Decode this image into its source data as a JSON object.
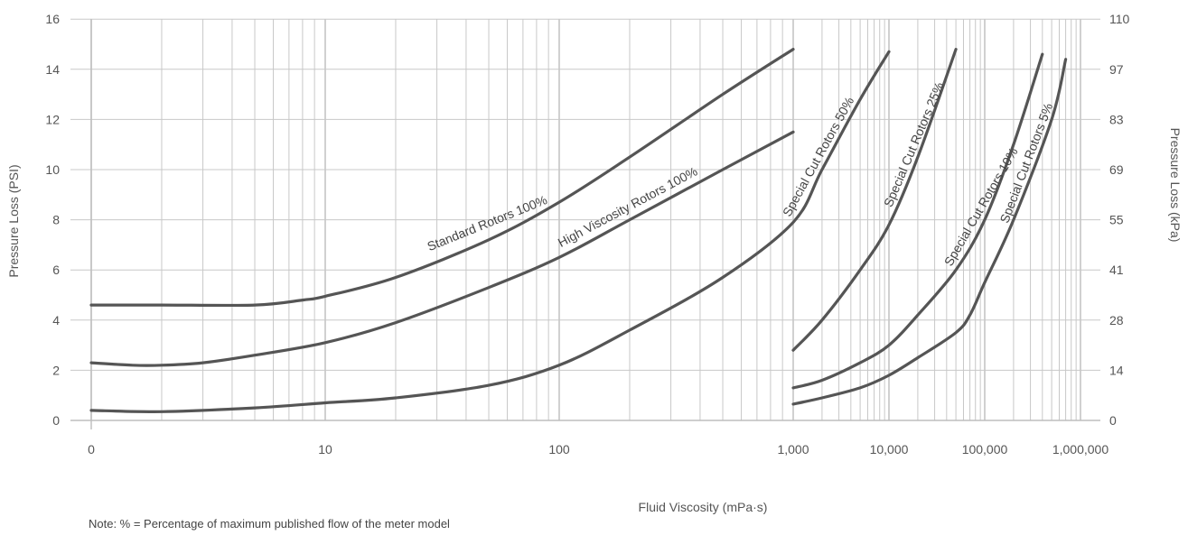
{
  "chart_data": {
    "type": "line",
    "xlabel": "Fluid Viscosity (mPa·s)",
    "ylabel_left": "Pressure Loss (PSI)",
    "ylabel_right": "Pressure Loss (kPa)",
    "note": "Note: % = Percentage of maximum published flow of the meter model",
    "x_scale": "log (two segments: 1–1,000 and 1,000–1,000,000)",
    "x_tick_labels": [
      "0",
      "10",
      "100",
      "1,000",
      "10,000",
      "100,000",
      "1,000,000"
    ],
    "y_left_ticks": [
      "0",
      "2",
      "4",
      "6",
      "8",
      "10",
      "12",
      "14",
      "16"
    ],
    "y_right_ticks": [
      "0",
      "14",
      "28",
      "41",
      "55",
      "69",
      "83",
      "97",
      "110"
    ],
    "ylim": [
      0,
      16
    ],
    "grid": true,
    "series": [
      {
        "name": "Standard Rotors 100%",
        "points": [
          [
            1,
            4.6
          ],
          [
            2,
            4.6
          ],
          [
            5,
            4.6
          ],
          [
            8,
            4.8
          ],
          [
            10,
            4.95
          ],
          [
            20,
            5.7
          ],
          [
            50,
            7.2
          ],
          [
            100,
            8.7
          ],
          [
            200,
            10.5
          ],
          [
            500,
            13.0
          ],
          [
            1000,
            14.8
          ]
        ]
      },
      {
        "name": "High Viscosity Rotors 100%",
        "points": [
          [
            1,
            2.3
          ],
          [
            1.5,
            2.2
          ],
          [
            2,
            2.2
          ],
          [
            3,
            2.3
          ],
          [
            5,
            2.6
          ],
          [
            10,
            3.1
          ],
          [
            20,
            3.9
          ],
          [
            50,
            5.3
          ],
          [
            100,
            6.5
          ],
          [
            200,
            8.0
          ],
          [
            500,
            10.0
          ],
          [
            1000,
            11.5
          ]
        ]
      },
      {
        "name": "Special Cut Rotors 50%",
        "points": [
          [
            1,
            0.4
          ],
          [
            2,
            0.35
          ],
          [
            5,
            0.5
          ],
          [
            10,
            0.7
          ],
          [
            20,
            0.9
          ],
          [
            50,
            1.4
          ],
          [
            100,
            2.2
          ],
          [
            200,
            3.6
          ],
          [
            500,
            5.7
          ],
          [
            1000,
            7.9
          ],
          [
            2000,
            10.0
          ],
          [
            5000,
            12.8
          ],
          [
            10000,
            14.7
          ]
        ]
      },
      {
        "name": "Special Cut Rotors 25%",
        "points": [
          [
            1000,
            2.8
          ],
          [
            2000,
            4.0
          ],
          [
            5000,
            6.0
          ],
          [
            10000,
            7.8
          ],
          [
            20000,
            10.5
          ],
          [
            50000,
            14.8
          ]
        ]
      },
      {
        "name": "Special Cut Rotors 10%",
        "points": [
          [
            1000,
            1.3
          ],
          [
            2000,
            1.6
          ],
          [
            5000,
            2.3
          ],
          [
            10000,
            3.0
          ],
          [
            20000,
            4.2
          ],
          [
            50000,
            6.0
          ],
          [
            100000,
            8.0
          ],
          [
            200000,
            11.0
          ],
          [
            400000,
            14.6
          ]
        ]
      },
      {
        "name": "Special Cut Rotors 5%",
        "points": [
          [
            1000,
            0.65
          ],
          [
            2000,
            0.9
          ],
          [
            5000,
            1.3
          ],
          [
            10000,
            1.8
          ],
          [
            20000,
            2.5
          ],
          [
            50000,
            3.5
          ],
          [
            70000,
            4.2
          ],
          [
            100000,
            5.5
          ],
          [
            200000,
            8.0
          ],
          [
            500000,
            12.0
          ],
          [
            700000,
            14.4
          ]
        ]
      }
    ]
  }
}
